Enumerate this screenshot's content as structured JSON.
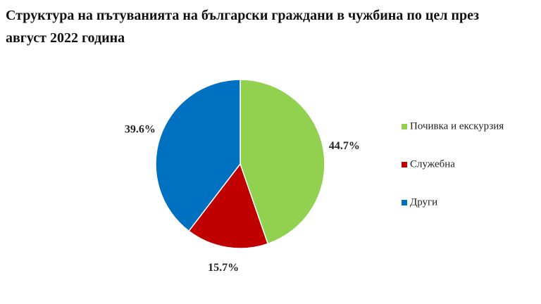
{
  "chart_data": {
    "type": "pie",
    "title": "Структура на пътуванията на български граждани в чужбина по цел през август 2022 година",
    "categories": [
      "Почивка и екскурзия",
      "Служебна",
      "Други"
    ],
    "values": [
      44.7,
      15.7,
      39.6
    ],
    "value_labels": [
      "44.7%",
      "15.7%",
      "39.6%"
    ],
    "colors": [
      "#92d050",
      "#c00000",
      "#0070c0"
    ],
    "legend": "right"
  }
}
